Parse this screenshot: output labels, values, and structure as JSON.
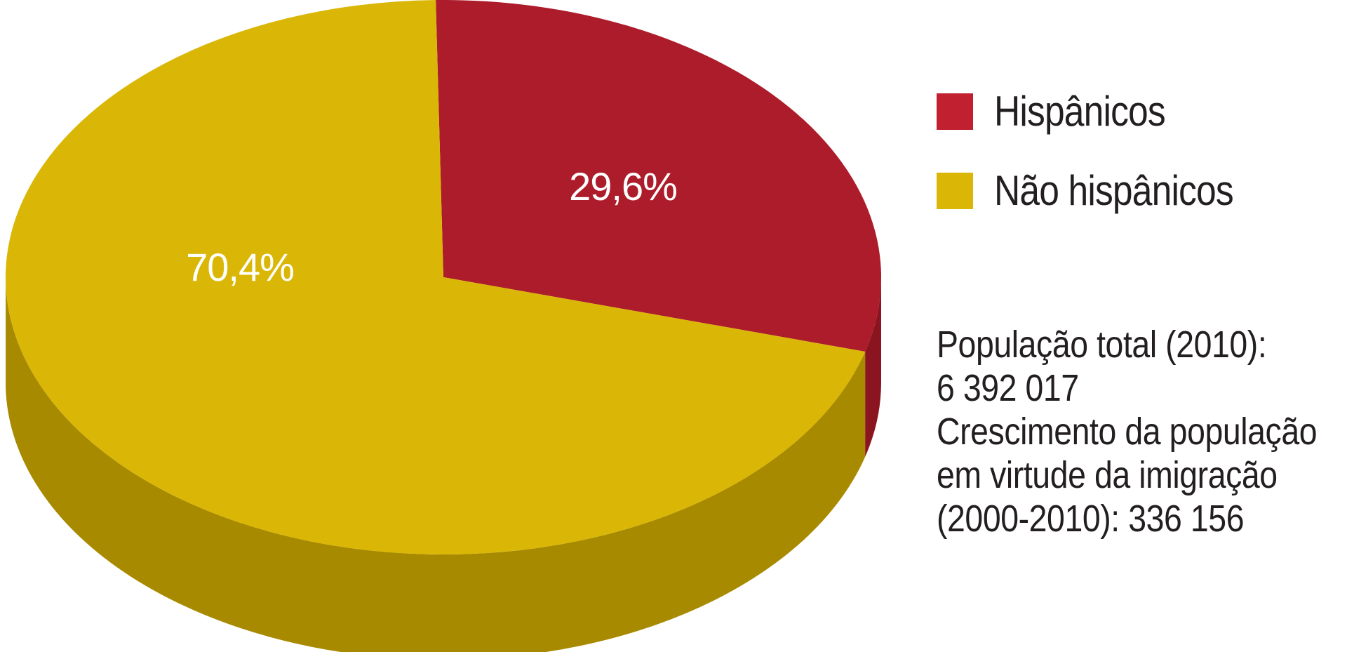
{
  "chart_data": {
    "type": "pie",
    "style": "3d",
    "title": "",
    "slices": [
      {
        "label": "Hispânicos",
        "value": 29.6,
        "display": "29,6%",
        "color": "#ac1c2a",
        "side_color": "#8a1520"
      },
      {
        "label": "Não hispânicos",
        "value": 70.4,
        "display": "70,4%",
        "color": "#dab706",
        "side_color": "#a88a00"
      }
    ],
    "legend": {
      "placement": "right",
      "entries": [
        {
          "label": "Hispânicos",
          "color": "#c0202f"
        },
        {
          "label": "Não hispânicos",
          "color": "#dab706"
        }
      ]
    },
    "annotations": [
      "População total (2010):",
      "6 392 017",
      "Crescimento da população",
      "em virtude da imigração",
      "(2000-2010): 336 156"
    ]
  }
}
